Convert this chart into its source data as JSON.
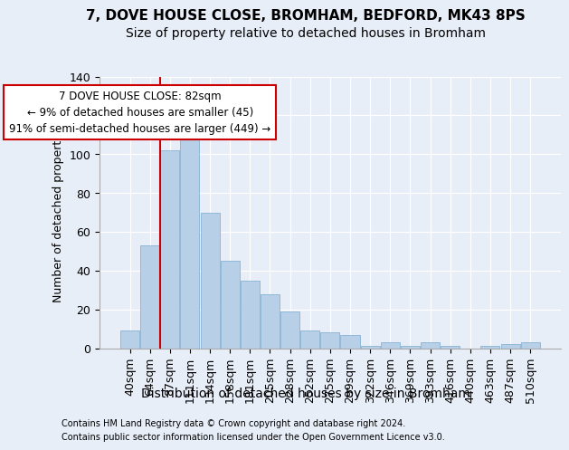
{
  "title1": "7, DOVE HOUSE CLOSE, BROMHAM, BEDFORD, MK43 8PS",
  "title2": "Size of property relative to detached houses in Bromham",
  "xlabel": "Distribution of detached houses by size in Bromham",
  "ylabel": "Number of detached properties",
  "footer1": "Contains HM Land Registry data © Crown copyright and database right 2024.",
  "footer2": "Contains public sector information licensed under the Open Government Licence v3.0.",
  "bar_labels": [
    "40sqm",
    "64sqm",
    "87sqm",
    "111sqm",
    "134sqm",
    "158sqm",
    "181sqm",
    "205sqm",
    "228sqm",
    "252sqm",
    "275sqm",
    "299sqm",
    "322sqm",
    "346sqm",
    "369sqm",
    "393sqm",
    "416sqm",
    "440sqm",
    "463sqm",
    "487sqm",
    "510sqm"
  ],
  "bar_values": [
    9,
    53,
    102,
    113,
    70,
    45,
    35,
    28,
    19,
    9,
    8,
    7,
    1,
    3,
    1,
    3,
    1,
    0,
    1,
    2,
    3
  ],
  "bar_color": "#b8cfe8",
  "bar_edge_color": "#7aaad0",
  "vline_color": "#cc0000",
  "annotation_line1": "7 DOVE HOUSE CLOSE: 82sqm",
  "annotation_line2": "← 9% of detached houses are smaller (45)",
  "annotation_line3": "91% of semi-detached houses are larger (449) →",
  "annotation_box_color": "white",
  "annotation_box_edge": "#cc0000",
  "ylim": [
    0,
    140
  ],
  "yticks": [
    0,
    20,
    40,
    60,
    80,
    100,
    120,
    140
  ],
  "background_color": "#e8eef8",
  "plot_bg_color": "#e8eef8",
  "grid_color": "white",
  "title1_fontsize": 11,
  "title2_fontsize": 10,
  "xlabel_fontsize": 10,
  "ylabel_fontsize": 9,
  "tick_fontsize": 9,
  "footer_fontsize": 7
}
